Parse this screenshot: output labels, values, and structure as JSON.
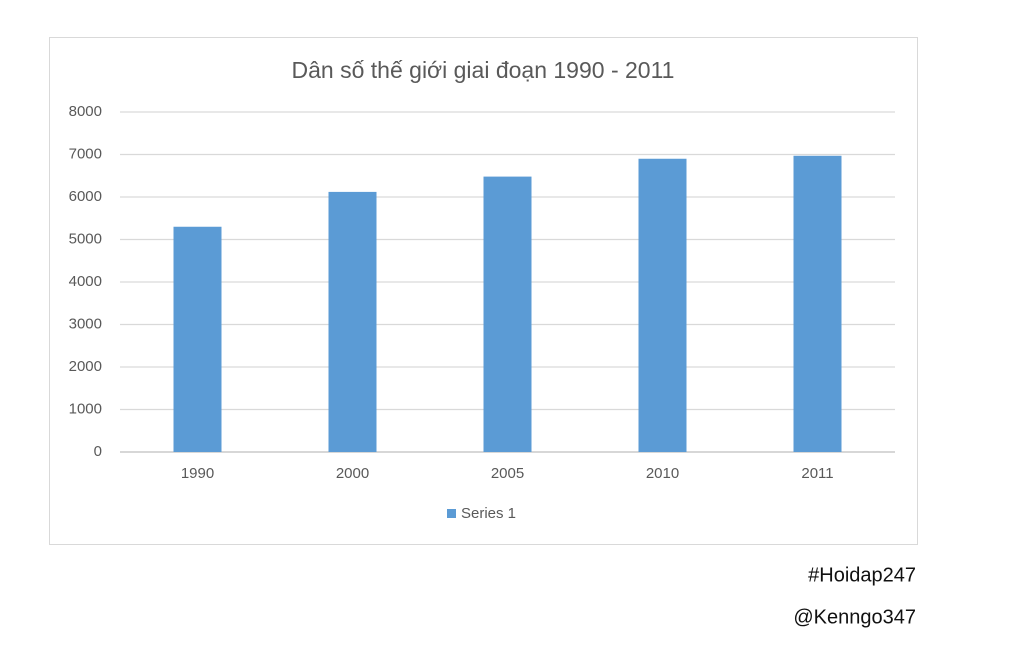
{
  "chart_data": {
    "type": "bar",
    "title": "Dân số thế giới giai đoạn 1990 - 2011",
    "categories": [
      "1990",
      "2000",
      "2005",
      "2010",
      "2011"
    ],
    "series": [
      {
        "name": "Series 1",
        "color": "#5b9bd5",
        "values": [
          5300,
          6120,
          6480,
          6900,
          6970
        ]
      }
    ],
    "ylim": [
      0,
      8000
    ],
    "yticks": [
      0,
      1000,
      2000,
      3000,
      4000,
      5000,
      6000,
      7000,
      8000
    ],
    "grid": true,
    "legend": "bottom",
    "annotations": [
      "#Hoidap247",
      "@Kenngo347"
    ]
  }
}
